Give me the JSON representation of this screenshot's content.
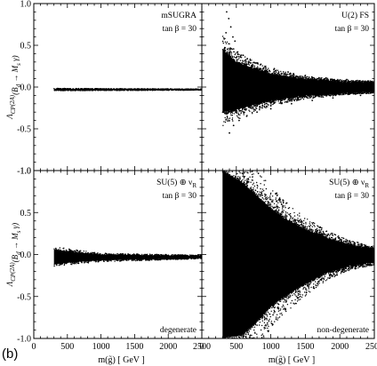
{
  "figure_label": "(b)",
  "chart_data": [
    {
      "type": "scatter",
      "panel": "top-left",
      "annotation": [
        "mSUGRA",
        "tan β = 30"
      ],
      "xlabel": "",
      "ylabel": "Λ_CP^(2A)(B_d → M_s γ)",
      "xlim": [
        0,
        2500
      ],
      "ylim": [
        -1.0,
        1.0
      ],
      "yticks": [
        "1.0",
        "0.5",
        "0.0",
        "-0.5",
        "-1.0"
      ],
      "xticks": [],
      "grid": false,
      "band": {
        "x_start": 300,
        "x_end": 2500,
        "center": [
          [
            300,
            -0.03
          ],
          [
            2500,
            -0.03
          ]
        ],
        "upper": [
          [
            300,
            -0.02
          ],
          [
            2500,
            -0.025
          ]
        ],
        "lower": [
          [
            300,
            -0.04
          ],
          [
            2500,
            -0.035
          ]
        ]
      }
    },
    {
      "type": "scatter",
      "panel": "top-right",
      "annotation": [
        "U(2) FS",
        "tan β = 30"
      ],
      "xlabel": "",
      "ylabel": "",
      "xlim": [
        0,
        2500
      ],
      "ylim": [
        -1.0,
        1.0
      ],
      "yticks": [],
      "xticks": [],
      "grid": false,
      "band": {
        "x_start": 300,
        "x_end": 2500,
        "center": [
          [
            300,
            -0.02
          ],
          [
            2500,
            -0.02
          ]
        ],
        "upper": [
          [
            300,
            0.45
          ],
          [
            500,
            0.3
          ],
          [
            1000,
            0.15
          ],
          [
            1500,
            0.09
          ],
          [
            2000,
            0.06
          ],
          [
            2500,
            0.05
          ]
        ],
        "lower": [
          [
            300,
            -0.3
          ],
          [
            500,
            -0.27
          ],
          [
            1000,
            -0.16
          ],
          [
            1500,
            -0.1
          ],
          [
            2000,
            -0.07
          ],
          [
            2500,
            -0.05
          ]
        ]
      },
      "outliers": [
        [
          360,
          0.9
        ],
        [
          390,
          0.82
        ],
        [
          420,
          0.72
        ],
        [
          450,
          0.6
        ],
        [
          480,
          0.55
        ],
        [
          350,
          0.65
        ],
        [
          520,
          0.42
        ],
        [
          600,
          0.38
        ],
        [
          700,
          0.32
        ],
        [
          850,
          0.27
        ],
        [
          1050,
          0.22
        ],
        [
          1250,
          0.18
        ],
        [
          1500,
          0.14
        ],
        [
          1800,
          0.11
        ],
        [
          2100,
          0.09
        ],
        [
          400,
          -0.55
        ],
        [
          460,
          -0.46
        ],
        [
          540,
          -0.4
        ],
        [
          650,
          -0.35
        ],
        [
          800,
          -0.3
        ],
        [
          1000,
          -0.26
        ],
        [
          1300,
          -0.2
        ],
        [
          1600,
          -0.16
        ],
        [
          1900,
          -0.13
        ],
        [
          2300,
          -0.1
        ]
      ]
    },
    {
      "type": "scatter",
      "panel": "bottom-left",
      "annotation": [
        "SU(5) ⊕ ν_R",
        "tan β = 30",
        "degenerate"
      ],
      "xlabel": "m(g̃)  [ GeV ]",
      "ylabel": "Λ_CP^(2A)(B_d → M_s γ)",
      "xlim": [
        0,
        2500
      ],
      "ylim": [
        -1.0,
        1.0
      ],
      "yticks": [
        "1.0",
        "0.5",
        "0.0",
        "-0.5",
        "-1.0"
      ],
      "xticks": [
        "0",
        "500",
        "1000",
        "1500",
        "2000",
        "2500"
      ],
      "grid": false,
      "band": {
        "x_start": 300,
        "x_end": 2500,
        "center": [
          [
            300,
            -0.03
          ],
          [
            2500,
            -0.03
          ]
        ],
        "upper": [
          [
            300,
            0.06
          ],
          [
            600,
            0.03
          ],
          [
            1000,
            0.0
          ],
          [
            2500,
            -0.015
          ]
        ],
        "lower": [
          [
            300,
            -0.12
          ],
          [
            600,
            -0.09
          ],
          [
            1000,
            -0.07
          ],
          [
            2500,
            -0.045
          ]
        ]
      }
    },
    {
      "type": "scatter",
      "panel": "bottom-right",
      "annotation": [
        "SU(5) ⊕ ν_R",
        "tan β = 30",
        "non-degenerate"
      ],
      "xlabel": "m(g̃)  [ GeV ]",
      "ylabel": "",
      "xlim": [
        0,
        2500
      ],
      "ylim": [
        -1.0,
        1.0
      ],
      "yticks": [],
      "xticks": [
        "0",
        "500",
        "1000",
        "1500",
        "2000",
        "2500"
      ],
      "grid": false,
      "band": {
        "x_start": 300,
        "x_end": 2500,
        "center": [
          [
            300,
            -0.02
          ],
          [
            2500,
            -0.03
          ]
        ],
        "upper": [
          [
            300,
            1.0
          ],
          [
            600,
            0.85
          ],
          [
            800,
            0.7
          ],
          [
            1000,
            0.55
          ],
          [
            1200,
            0.43
          ],
          [
            1500,
            0.3
          ],
          [
            1800,
            0.2
          ],
          [
            2100,
            0.12
          ],
          [
            2500,
            0.06
          ]
        ],
        "lower": [
          [
            300,
            -1.0
          ],
          [
            600,
            -0.95
          ],
          [
            800,
            -0.8
          ],
          [
            1000,
            -0.62
          ],
          [
            1200,
            -0.5
          ],
          [
            1500,
            -0.35
          ],
          [
            1800,
            -0.22
          ],
          [
            2100,
            -0.14
          ],
          [
            2500,
            -0.09
          ]
        ]
      }
    }
  ]
}
